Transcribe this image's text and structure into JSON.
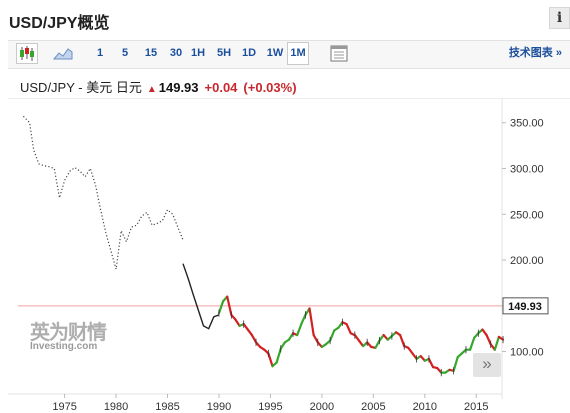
{
  "header": {
    "title": "USD/JPY概览",
    "info_label": "i"
  },
  "toolbar": {
    "candle_icon": "candlestick-chart-icon",
    "area_icon": "area-chart-icon",
    "settings_icon": "chart-settings-icon",
    "ranges": [
      "1",
      "5",
      "15",
      "30",
      "1H",
      "5H",
      "1D",
      "1W",
      "1M"
    ],
    "active_range": "1M",
    "tech_chart_label": "技术图表 »"
  },
  "quote": {
    "name": "USD/JPY - 美元 日元",
    "price": "149.93",
    "change": "+0.04",
    "change_pct": "(+0.03%)",
    "direction": "up"
  },
  "watermark": {
    "cn": "英为财情",
    "en": "Investing.com"
  },
  "scroll_label": "»",
  "colors": {
    "up": "#37a62c",
    "down": "#d32020",
    "link": "#1c4f9c",
    "price_line": "#f0a0a0"
  },
  "chart_data": {
    "type": "line",
    "title": "",
    "xlabel": "",
    "ylabel": "",
    "x_ticks": [
      1975,
      1980,
      1985,
      1990,
      1995,
      2000,
      2005,
      2010,
      2015
    ],
    "y_ticks": [
      "100.00",
      "150.00",
      "200.00",
      "250.00",
      "300.00",
      "350.00"
    ],
    "current_price_label": "149.93",
    "current_price": 149.93,
    "xlim": [
      1969.5,
      2017.5
    ],
    "ylim": [
      70,
      365
    ],
    "grid": false,
    "series": [
      {
        "style": "dotted",
        "color": "#444444",
        "points": [
          [
            1971.0,
            357
          ],
          [
            1971.6,
            350
          ],
          [
            1972.0,
            320
          ],
          [
            1972.5,
            305
          ],
          [
            1973.0,
            303
          ],
          [
            1973.5,
            302
          ],
          [
            1974.0,
            300
          ],
          [
            1974.5,
            268
          ],
          [
            1975.0,
            287
          ],
          [
            1975.5,
            297
          ],
          [
            1976.0,
            301
          ],
          [
            1976.5,
            297
          ],
          [
            1977.0,
            291
          ],
          [
            1977.5,
            300
          ],
          [
            1978.0,
            282
          ],
          [
            1978.5,
            255
          ],
          [
            1979.0,
            230
          ],
          [
            1979.5,
            210
          ],
          [
            1980.0,
            190
          ],
          [
            1980.5,
            232
          ],
          [
            1981.0,
            220
          ],
          [
            1981.5,
            236
          ],
          [
            1982.0,
            238
          ],
          [
            1982.5,
            248
          ],
          [
            1983.0,
            252
          ],
          [
            1983.5,
            238
          ],
          [
            1984.0,
            240
          ],
          [
            1984.5,
            243
          ],
          [
            1985.0,
            255
          ],
          [
            1985.5,
            250
          ],
          [
            1986.0,
            236
          ],
          [
            1986.5,
            222
          ]
        ]
      },
      {
        "style": "solid",
        "color": "#222222",
        "points": [
          [
            1986.5,
            196
          ],
          [
            1987.0,
            180
          ],
          [
            1987.5,
            162
          ],
          [
            1988.0,
            145
          ],
          [
            1988.5,
            128
          ],
          [
            1989.0,
            125
          ],
          [
            1989.5,
            138
          ],
          [
            1990.0,
            140
          ]
        ]
      },
      {
        "style": "candles",
        "points": [
          [
            1990.0,
            142
          ],
          [
            1990.4,
            155
          ],
          [
            1990.8,
            160
          ],
          [
            1991.2,
            140
          ],
          [
            1991.6,
            135
          ],
          [
            1992.0,
            128
          ],
          [
            1992.4,
            130
          ],
          [
            1992.8,
            124
          ],
          [
            1993.2,
            118
          ],
          [
            1993.6,
            110
          ],
          [
            1994.0,
            105
          ],
          [
            1994.4,
            102
          ],
          [
            1994.8,
            98
          ],
          [
            1995.2,
            84
          ],
          [
            1995.6,
            88
          ],
          [
            1996.0,
            103
          ],
          [
            1996.4,
            110
          ],
          [
            1996.8,
            113
          ],
          [
            1997.2,
            120
          ],
          [
            1997.6,
            118
          ],
          [
            1998.0,
            130
          ],
          [
            1998.4,
            140
          ],
          [
            1998.8,
            147
          ],
          [
            1999.2,
            118
          ],
          [
            1999.6,
            110
          ],
          [
            2000.0,
            105
          ],
          [
            2000.4,
            108
          ],
          [
            2000.8,
            112
          ],
          [
            2001.2,
            123
          ],
          [
            2001.6,
            126
          ],
          [
            2002.0,
            132
          ],
          [
            2002.4,
            130
          ],
          [
            2002.8,
            120
          ],
          [
            2003.2,
            118
          ],
          [
            2003.6,
            112
          ],
          [
            2004.0,
            106
          ],
          [
            2004.4,
            110
          ],
          [
            2004.8,
            105
          ],
          [
            2005.2,
            104
          ],
          [
            2005.6,
            112
          ],
          [
            2006.0,
            118
          ],
          [
            2006.4,
            113
          ],
          [
            2006.8,
            117
          ],
          [
            2007.2,
            121
          ],
          [
            2007.6,
            118
          ],
          [
            2008.0,
            106
          ],
          [
            2008.4,
            104
          ],
          [
            2008.8,
            98
          ],
          [
            2009.2,
            92
          ],
          [
            2009.6,
            95
          ],
          [
            2010.0,
            90
          ],
          [
            2010.4,
            92
          ],
          [
            2010.8,
            83
          ],
          [
            2011.2,
            82
          ],
          [
            2011.6,
            77
          ],
          [
            2012.0,
            77
          ],
          [
            2012.4,
            80
          ],
          [
            2012.8,
            79
          ],
          [
            2013.2,
            94
          ],
          [
            2013.6,
            98
          ],
          [
            2014.0,
            102
          ],
          [
            2014.4,
            102
          ],
          [
            2014.8,
            115
          ],
          [
            2015.2,
            120
          ],
          [
            2015.6,
            124
          ],
          [
            2016.0,
            118
          ],
          [
            2016.4,
            108
          ],
          [
            2016.8,
            102
          ],
          [
            2017.2,
            116
          ],
          [
            2017.6,
            113
          ]
        ]
      }
    ]
  }
}
